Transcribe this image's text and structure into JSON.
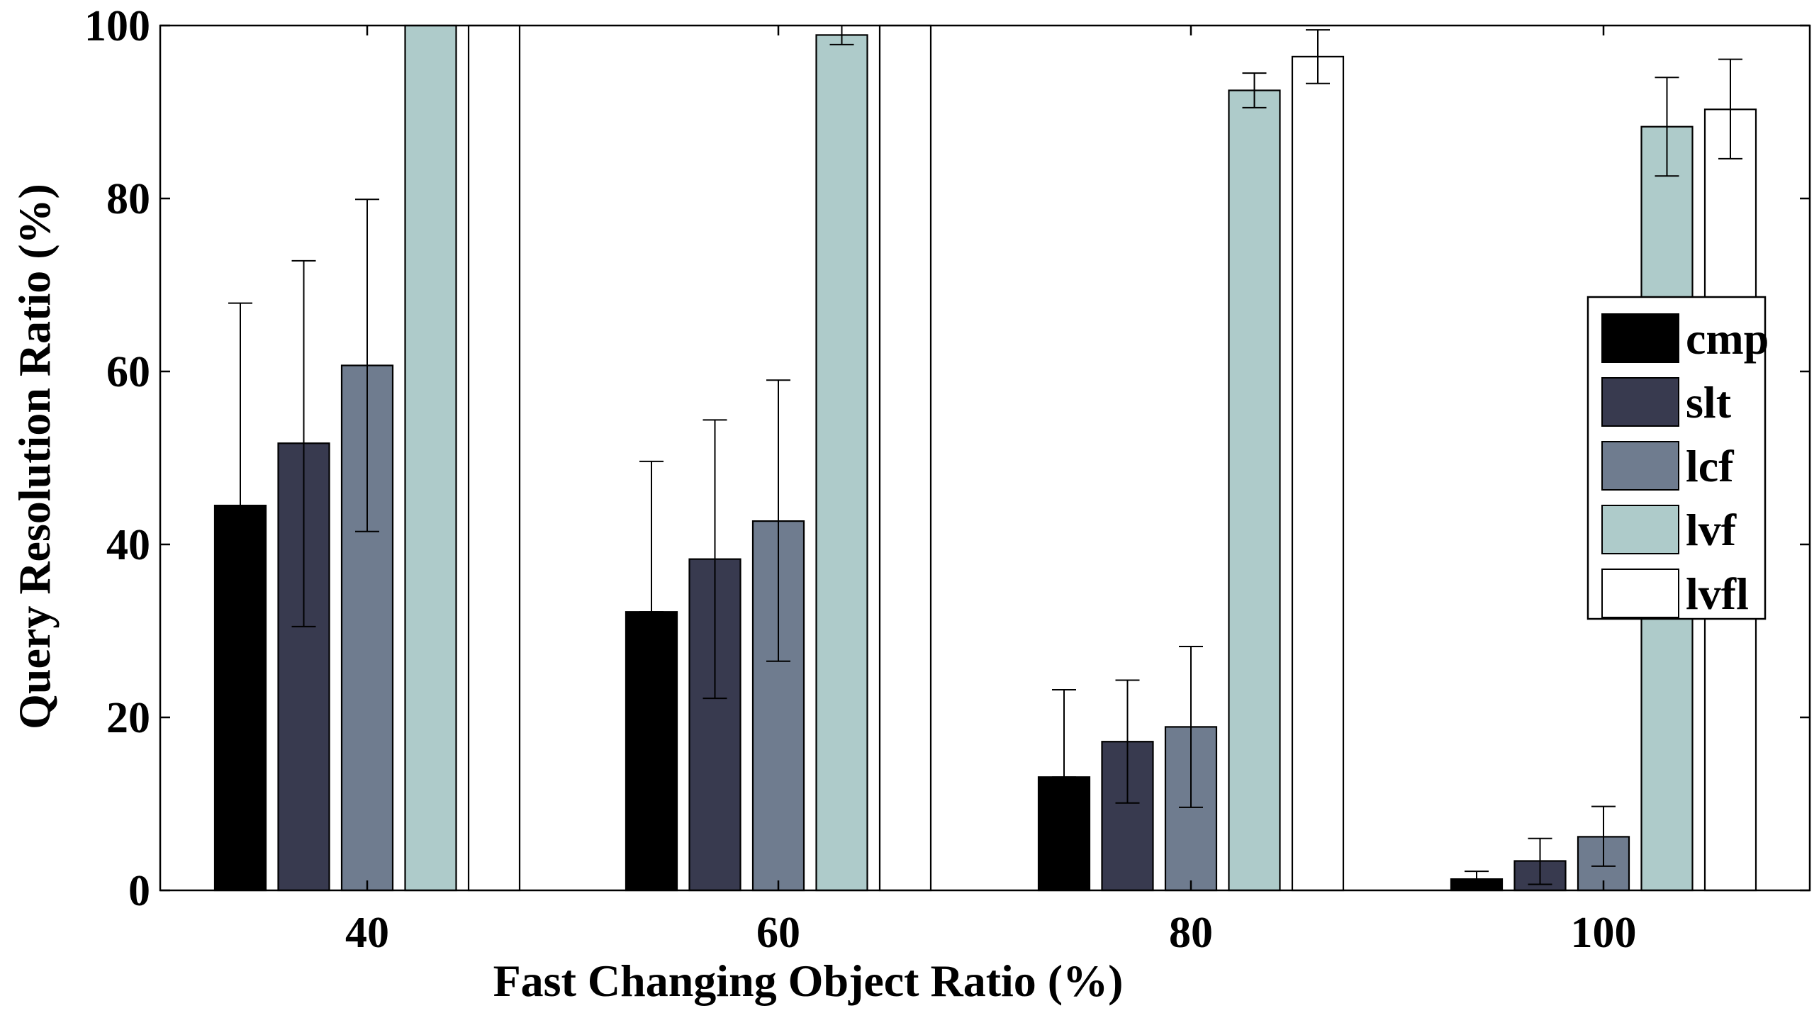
{
  "chart_data": {
    "type": "bar",
    "xlabel": "Fast Changing Object Ratio (%)",
    "ylabel": "Query Resolution Ratio (%)",
    "categories": [
      "40",
      "60",
      "80",
      "100"
    ],
    "ylim": [
      0,
      100
    ],
    "yticks": [
      "0",
      "20",
      "40",
      "60",
      "80",
      "100"
    ],
    "grid": false,
    "legend_position": "right",
    "series": [
      {
        "name": "cmp",
        "color": "#000000",
        "values": [
          44.5,
          32.2,
          13.1,
          1.3
        ],
        "err_low": [
          44.5,
          32.2,
          13.1,
          1.3
        ],
        "err_high": [
          67.9,
          49.6,
          23.2,
          2.2
        ]
      },
      {
        "name": "slt",
        "color": "#383a4f",
        "values": [
          51.7,
          38.3,
          17.2,
          3.4
        ],
        "err_low": [
          30.5,
          22.2,
          10.1,
          0.7
        ],
        "err_high": [
          72.8,
          54.4,
          24.3,
          6.0
        ]
      },
      {
        "name": "lcf",
        "color": "#6f7c8f",
        "values": [
          60.7,
          42.7,
          18.9,
          6.2
        ],
        "err_low": [
          41.5,
          26.5,
          9.6,
          2.8
        ],
        "err_high": [
          79.9,
          59.0,
          28.2,
          9.7
        ]
      },
      {
        "name": "lvf",
        "color": "#aecbca",
        "values": [
          100.0,
          98.9,
          92.5,
          88.3
        ],
        "err_low": [
          100.0,
          97.8,
          90.5,
          82.6
        ],
        "err_high": [
          100.0,
          100.0,
          94.5,
          94.0
        ]
      },
      {
        "name": "lvfl",
        "color": "#ffffff",
        "values": [
          100.0,
          100.0,
          96.4,
          90.3
        ],
        "err_low": [
          100.0,
          100.0,
          93.3,
          84.6
        ],
        "err_high": [
          100.0,
          100.0,
          99.5,
          96.1
        ]
      }
    ]
  }
}
